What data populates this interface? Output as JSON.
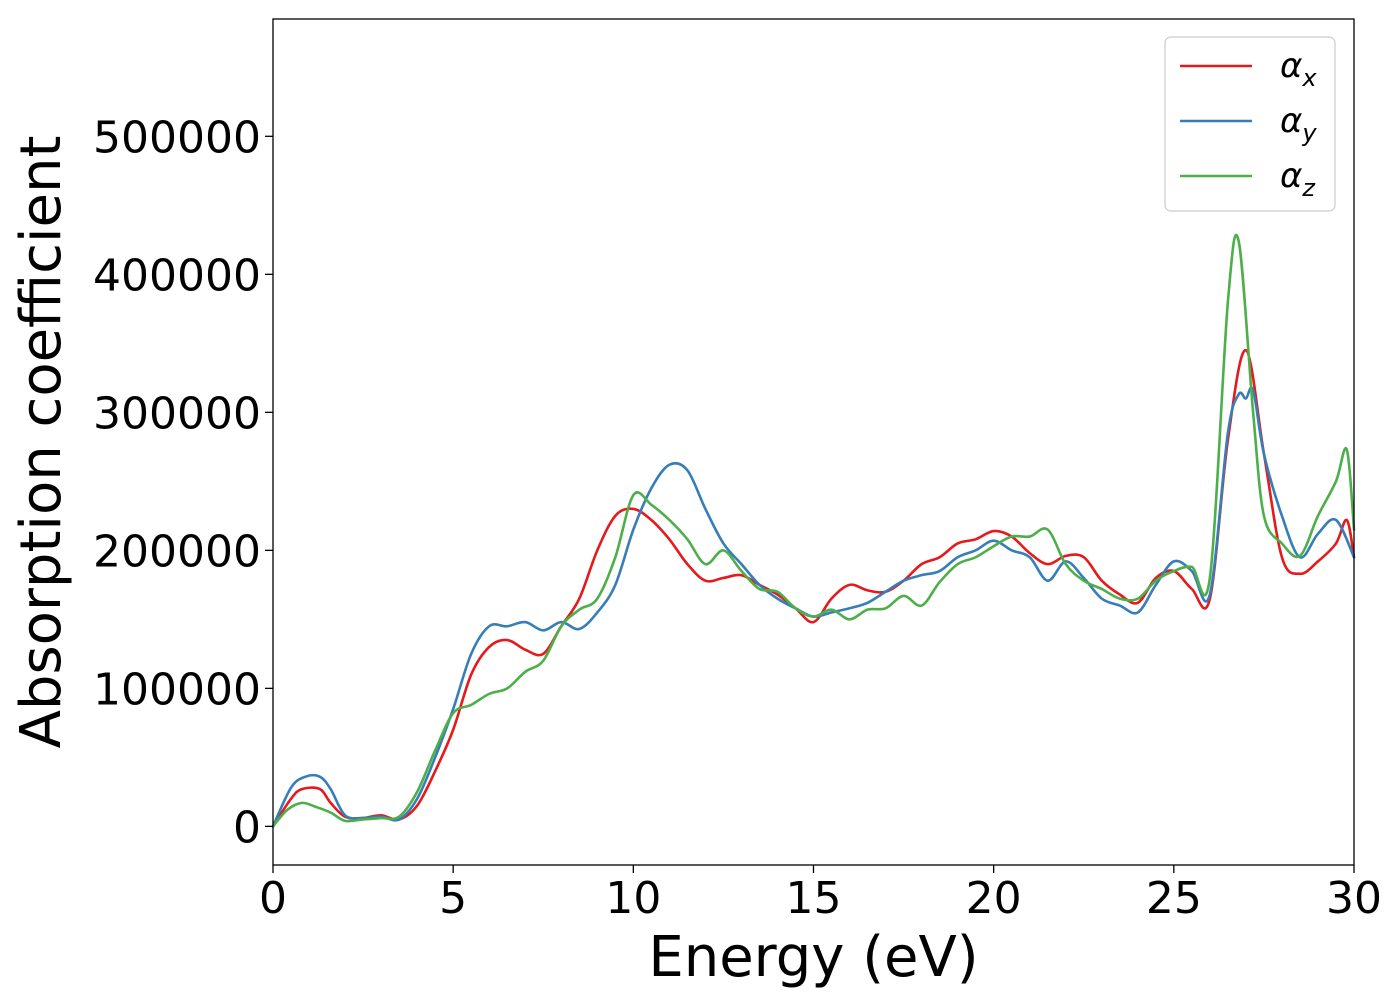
{
  "chart_data": {
    "type": "line",
    "title": "",
    "xlabel": "Energy (eV)",
    "ylabel": "Absorption coefficient",
    "xlim": [
      0,
      30
    ],
    "ylim": [
      -28000,
      585000
    ],
    "xticks": [
      0,
      5,
      10,
      15,
      20,
      25,
      30
    ],
    "xtick_labels": [
      "0",
      "5",
      "10",
      "15",
      "20",
      "25",
      "30"
    ],
    "yticks": [
      0,
      100000,
      200000,
      300000,
      400000,
      500000
    ],
    "ytick_labels": [
      "0",
      "100000",
      "200000",
      "300000",
      "400000",
      "500000"
    ],
    "grid": false,
    "legend_position": "top-right",
    "series": [
      {
        "name": "α_x",
        "symbol": "α",
        "subscript": "x",
        "color": "#e41a1c",
        "x": [
          0,
          0.5,
          0.8,
          1.3,
          1.6,
          2.0,
          2.5,
          3.0,
          3.5,
          4.0,
          4.5,
          5.0,
          5.5,
          6.0,
          6.5,
          7.0,
          7.5,
          8.0,
          8.5,
          9.0,
          9.5,
          10.0,
          10.5,
          11.0,
          11.5,
          12.0,
          12.5,
          13.0,
          13.5,
          14.0,
          14.5,
          15.0,
          15.5,
          16.0,
          16.5,
          17.0,
          17.5,
          18.0,
          18.5,
          19.0,
          19.5,
          20.0,
          20.5,
          21.0,
          21.5,
          22.0,
          22.5,
          23.0,
          23.5,
          24.0,
          24.5,
          25.0,
          25.5,
          26.0,
          26.5,
          27.0,
          27.5,
          28.0,
          28.5,
          29.0,
          29.5,
          29.8,
          30.0
        ],
        "y": [
          0,
          20000,
          27000,
          27000,
          17000,
          7000,
          6000,
          8000,
          5000,
          15000,
          40000,
          70000,
          110000,
          130000,
          135000,
          128000,
          125000,
          145000,
          165000,
          200000,
          225000,
          230000,
          222000,
          208000,
          190000,
          178000,
          180000,
          182000,
          175000,
          168000,
          158000,
          148000,
          165000,
          175000,
          171000,
          170000,
          178000,
          190000,
          195000,
          205000,
          208000,
          214000,
          210000,
          198000,
          190000,
          196000,
          195000,
          178000,
          168000,
          162000,
          180000,
          185000,
          172000,
          165000,
          280000,
          345000,
          270000,
          195000,
          183000,
          192000,
          205000,
          222000,
          195000
        ]
      },
      {
        "name": "α_y",
        "symbol": "α",
        "subscript": "y",
        "color": "#377eb8",
        "x": [
          0,
          0.5,
          0.9,
          1.3,
          1.6,
          2.0,
          2.5,
          3.0,
          3.5,
          4.0,
          4.5,
          5.0,
          5.5,
          6.0,
          6.5,
          7.0,
          7.5,
          8.0,
          8.5,
          9.0,
          9.5,
          10.0,
          10.5,
          11.0,
          11.5,
          12.0,
          12.5,
          13.0,
          13.5,
          14.0,
          14.5,
          15.0,
          15.5,
          16.0,
          16.5,
          17.0,
          17.5,
          18.0,
          18.5,
          19.0,
          19.5,
          20.0,
          20.5,
          21.0,
          21.5,
          22.0,
          22.5,
          23.0,
          23.5,
          24.0,
          24.5,
          25.0,
          25.5,
          26.0,
          26.5,
          26.8,
          27.0,
          27.2,
          27.5,
          28.0,
          28.5,
          29.0,
          29.5,
          30.0
        ],
        "y": [
          0,
          28000,
          36000,
          36000,
          27000,
          8000,
          6000,
          7000,
          5000,
          20000,
          50000,
          85000,
          125000,
          145000,
          145000,
          148000,
          142000,
          148000,
          143000,
          155000,
          175000,
          215000,
          245000,
          262000,
          258000,
          230000,
          205000,
          190000,
          175000,
          165000,
          158000,
          152000,
          155000,
          158000,
          162000,
          170000,
          178000,
          182000,
          185000,
          195000,
          200000,
          207000,
          200000,
          195000,
          178000,
          192000,
          180000,
          165000,
          160000,
          155000,
          175000,
          192000,
          185000,
          168000,
          285000,
          313000,
          310000,
          316000,
          270000,
          225000,
          195000,
          212000,
          222000,
          195000
        ]
      },
      {
        "name": "α_z",
        "symbol": "α",
        "subscript": "z",
        "color": "#4daf4a",
        "x": [
          0,
          0.4,
          0.8,
          1.2,
          1.6,
          2.0,
          2.5,
          3.0,
          3.5,
          4.0,
          4.5,
          5.0,
          5.5,
          6.0,
          6.5,
          7.0,
          7.5,
          8.0,
          8.5,
          9.0,
          9.5,
          10.0,
          10.5,
          11.0,
          11.5,
          12.0,
          12.5,
          13.0,
          13.5,
          14.0,
          14.5,
          15.0,
          15.5,
          16.0,
          16.5,
          17.0,
          17.5,
          18.0,
          18.5,
          19.0,
          19.5,
          20.0,
          20.5,
          21.0,
          21.5,
          22.0,
          22.5,
          23.0,
          23.5,
          24.0,
          24.5,
          25.0,
          25.5,
          26.0,
          26.5,
          26.8,
          27.2,
          27.5,
          28.0,
          28.5,
          29.0,
          29.5,
          29.8,
          30.0
        ],
        "y": [
          0,
          12000,
          17000,
          14000,
          10000,
          4000,
          5000,
          6000,
          7000,
          25000,
          55000,
          82000,
          88000,
          96000,
          100000,
          112000,
          120000,
          145000,
          157000,
          165000,
          195000,
          240000,
          233000,
          222000,
          208000,
          190000,
          200000,
          185000,
          172000,
          170000,
          158000,
          152000,
          157000,
          150000,
          157000,
          158000,
          167000,
          160000,
          177000,
          190000,
          195000,
          203000,
          210000,
          210000,
          215000,
          190000,
          178000,
          172000,
          165000,
          165000,
          178000,
          185000,
          188000,
          180000,
          380000,
          424000,
          300000,
          225000,
          205000,
          196000,
          225000,
          250000,
          273000,
          215000
        ]
      }
    ]
  }
}
